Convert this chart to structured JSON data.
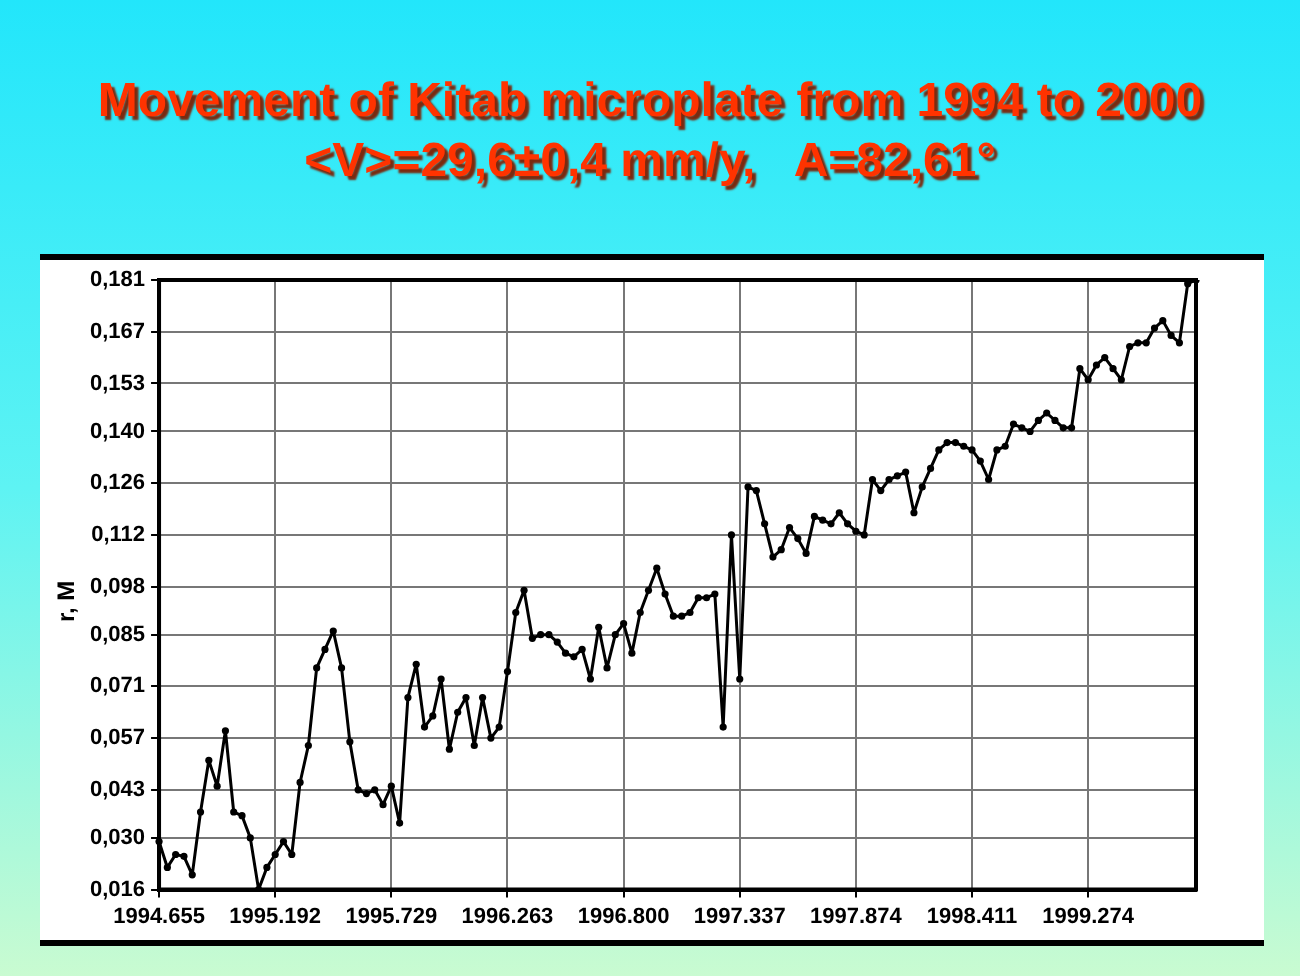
{
  "chart_data": {
    "type": "line",
    "title": "Movement of Kitab microplate from 1994 to 2000",
    "subtitle": "<V>=29,6±0,4 mm/y,   A=82,61°",
    "ylabel": "r, M",
    "categories": [
      "1994.655",
      null,
      null,
      null,
      null,
      null,
      null,
      null,
      null,
      null,
      null,
      null,
      null,
      null,
      "1995.192",
      null,
      null,
      null,
      null,
      null,
      null,
      null,
      null,
      null,
      null,
      null,
      null,
      null,
      "1995.729",
      null,
      null,
      null,
      null,
      null,
      null,
      null,
      null,
      null,
      null,
      null,
      null,
      null,
      "1996.263",
      null,
      null,
      null,
      null,
      null,
      null,
      null,
      null,
      null,
      null,
      null,
      null,
      null,
      "1996.800",
      null,
      null,
      null,
      null,
      null,
      null,
      null,
      null,
      null,
      null,
      null,
      null,
      null,
      "1997.337",
      null,
      null,
      null,
      null,
      null,
      null,
      null,
      null,
      null,
      null,
      null,
      null,
      null,
      "1997.874",
      null,
      null,
      null,
      null,
      null,
      null,
      null,
      null,
      null,
      null,
      null,
      null,
      null,
      "1998.411",
      null,
      null,
      null,
      null,
      null,
      null,
      null,
      null,
      null,
      null,
      null,
      null,
      null,
      "1999.274",
      null,
      null,
      null,
      null,
      null,
      null,
      null,
      null,
      null,
      null,
      null,
      null,
      null
    ],
    "color": "#000000",
    "values": [
      0.029,
      0.022,
      0.0255,
      0.025,
      0.02,
      0.037,
      0.051,
      0.044,
      0.059,
      0.037,
      0.036,
      0.03,
      0.016,
      0.022,
      0.0255,
      0.029,
      0.0255,
      0.045,
      0.055,
      0.076,
      0.081,
      0.086,
      0.076,
      0.056,
      0.043,
      0.042,
      0.043,
      0.039,
      0.044,
      0.034,
      0.068,
      0.077,
      0.06,
      0.063,
      0.073,
      0.054,
      0.064,
      0.068,
      0.055,
      0.068,
      0.057,
      0.06,
      0.075,
      0.091,
      0.097,
      0.084,
      0.085,
      0.085,
      0.083,
      0.08,
      0.079,
      0.081,
      0.073,
      0.087,
      0.076,
      0.085,
      0.088,
      0.08,
      0.091,
      0.097,
      0.103,
      0.096,
      0.09,
      0.09,
      0.091,
      0.095,
      0.095,
      0.096,
      0.06,
      0.112,
      0.073,
      0.125,
      0.124,
      0.115,
      0.106,
      0.108,
      0.114,
      0.111,
      0.107,
      0.117,
      0.116,
      0.115,
      0.118,
      0.115,
      0.113,
      0.112,
      0.127,
      0.124,
      0.127,
      0.128,
      0.129,
      0.118,
      0.125,
      0.13,
      0.135,
      0.137,
      0.137,
      0.136,
      0.135,
      0.132,
      0.127,
      0.135,
      0.136,
      0.142,
      0.141,
      0.14,
      0.143,
      0.145,
      0.143,
      0.141,
      0.141,
      0.157,
      0.154,
      0.158,
      0.16,
      0.157,
      0.154,
      0.163,
      0.164,
      0.164,
      0.168,
      0.17,
      0.166,
      0.164,
      0.18,
      0.181
    ],
    "ylim": [
      0.016,
      0.181
    ],
    "yticks": [
      {
        "value": 0.016,
        "label": "0,016"
      },
      {
        "value": 0.03,
        "label": "0,030"
      },
      {
        "value": 0.043,
        "label": "0,043"
      },
      {
        "value": 0.057,
        "label": "0,057"
      },
      {
        "value": 0.071,
        "label": "0,071"
      },
      {
        "value": 0.085,
        "label": "0,085"
      },
      {
        "value": 0.098,
        "label": "0,098"
      },
      {
        "value": 0.112,
        "label": "0,112"
      },
      {
        "value": 0.126,
        "label": "0,126"
      },
      {
        "value": 0.14,
        "label": "0,140"
      },
      {
        "value": 0.153,
        "label": "0,153"
      },
      {
        "value": 0.167,
        "label": "0,167"
      },
      {
        "value": 0.181,
        "label": "0,181"
      }
    ],
    "grid": true,
    "marker": "circle",
    "line_style": "solid"
  }
}
